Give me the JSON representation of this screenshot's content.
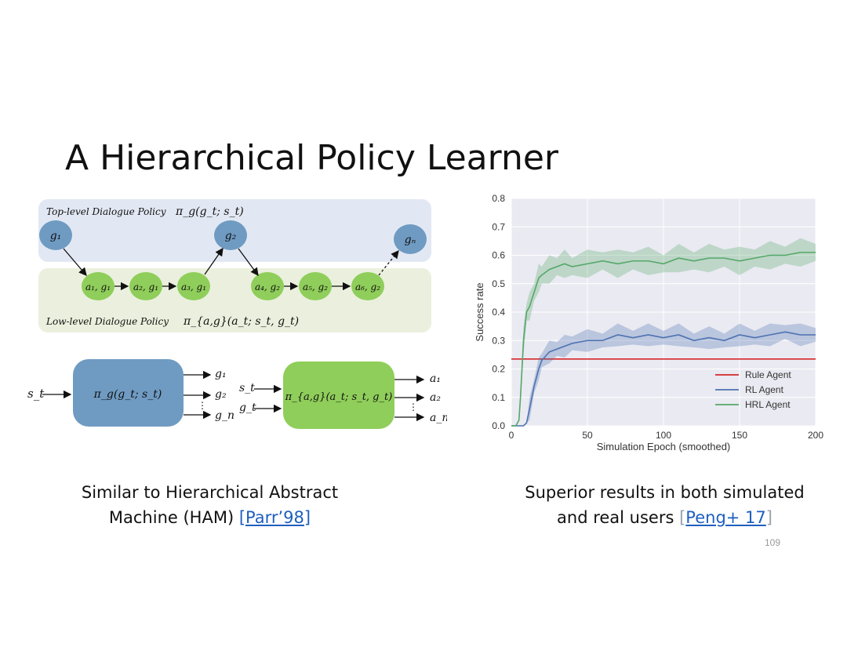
{
  "slide": {
    "title": "A Hierarchical Policy Learner",
    "page_number": "109"
  },
  "diagram": {
    "top_policy_label": "Top-level Dialogue Policy",
    "top_policy_formula": "π_g(g_t; s_t)",
    "low_policy_label": "Low-level Dialogue Policy",
    "low_policy_formula": "π_{a,g}(a_t; s_t, g_t)",
    "goal_nodes": [
      "g₁",
      "g₂",
      "gₙ"
    ],
    "action_nodes": [
      "a₁, g₁",
      "a₂, g₁",
      "a₃, g₁",
      "a₄, g₂",
      "a₅, g₂",
      "a₆, g₂"
    ],
    "colors": {
      "top_band": "#e2e8f3",
      "low_band": "#eaf0dd",
      "goal": "#6f9bc2",
      "action": "#8fce5a",
      "top_box": "#6f9bc2",
      "low_box": "#8fce5a"
    }
  },
  "blocks": {
    "top": {
      "input": "s_t",
      "formula": "π_g(g_t; s_t)",
      "outputs": [
        "g₁",
        "g₂",
        "⋮",
        "g_n"
      ]
    },
    "low": {
      "inputs": [
        "s_t",
        "g_t"
      ],
      "formula": "π_{a,g}(a_t; s_t, g_t)",
      "outputs": [
        "a₁",
        "a₂",
        "⋮",
        "a_m"
      ]
    }
  },
  "captions": {
    "left_line1": "Similar to Hierarchical Abstract",
    "left_line2": "Machine (HAM) ",
    "left_link": "[Parr’98]",
    "right_line1": "Superior results in both simulated",
    "right_line2": "and real users ",
    "right_bracket_open": "[",
    "right_link": "Peng+ 17",
    "right_bracket_close": "]"
  },
  "chart_data": {
    "type": "line",
    "title": "",
    "xlabel": "Simulation Epoch (smoothed)",
    "ylabel": "Success rate",
    "xlim": [
      0,
      200
    ],
    "ylim": [
      0,
      0.8
    ],
    "xticks": [
      "0",
      "50",
      "100",
      "150",
      "200"
    ],
    "yticks": [
      "0.0",
      "0.1",
      "0.2",
      "0.3",
      "0.4",
      "0.5",
      "0.6",
      "0.7",
      "0.8"
    ],
    "grid": true,
    "legend_position": "bottom-right",
    "series": [
      {
        "name": "Rule Agent",
        "color": "#d62728",
        "x": [
          0,
          200
        ],
        "y": [
          0.235,
          0.235
        ]
      },
      {
        "name": "RL Agent",
        "color": "#4c72b0",
        "band": 0.04,
        "x": [
          0,
          5,
          8,
          10,
          12,
          15,
          18,
          20,
          25,
          30,
          35,
          40,
          50,
          60,
          70,
          80,
          90,
          100,
          110,
          120,
          130,
          140,
          150,
          160,
          170,
          180,
          190,
          200
        ],
        "y": [
          0.0,
          0.0,
          0.0,
          0.01,
          0.06,
          0.14,
          0.2,
          0.23,
          0.26,
          0.27,
          0.28,
          0.29,
          0.3,
          0.3,
          0.32,
          0.31,
          0.32,
          0.31,
          0.32,
          0.3,
          0.31,
          0.3,
          0.32,
          0.31,
          0.32,
          0.33,
          0.32,
          0.32
        ]
      },
      {
        "name": "HRL Agent",
        "color": "#55a868",
        "band": 0.05,
        "x": [
          0,
          3,
          5,
          6,
          8,
          10,
          12,
          15,
          18,
          20,
          25,
          30,
          35,
          40,
          50,
          60,
          70,
          80,
          90,
          100,
          110,
          120,
          130,
          140,
          150,
          160,
          170,
          180,
          190,
          200
        ],
        "y": [
          0.0,
          0.0,
          0.02,
          0.1,
          0.3,
          0.4,
          0.42,
          0.47,
          0.52,
          0.53,
          0.55,
          0.56,
          0.57,
          0.56,
          0.57,
          0.58,
          0.57,
          0.58,
          0.58,
          0.57,
          0.59,
          0.58,
          0.59,
          0.59,
          0.58,
          0.59,
          0.6,
          0.6,
          0.61,
          0.61
        ]
      }
    ]
  }
}
